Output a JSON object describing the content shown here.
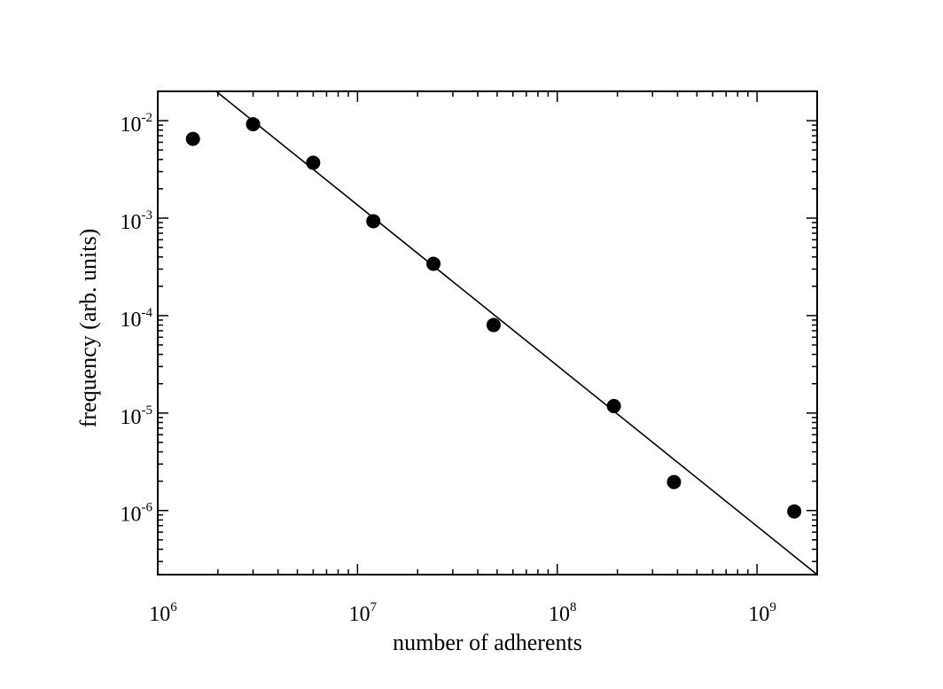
{
  "chart_data": {
    "type": "scatter",
    "title": "",
    "xlabel": "number of adherents",
    "ylabel": "frequency (arb. units)",
    "xscale": "log",
    "yscale": "log",
    "xlim": [
      1000000,
      2000000000
    ],
    "ylim": [
      2.2e-07,
      0.02
    ],
    "grid": false,
    "legend": "none",
    "x_ticks": [
      {
        "base": "10",
        "exp": "6",
        "value": 1000000
      },
      {
        "base": "10",
        "exp": "7",
        "value": 10000000
      },
      {
        "base": "10",
        "exp": "8",
        "value": 100000000
      },
      {
        "base": "10",
        "exp": "9",
        "value": 1000000000
      }
    ],
    "y_ticks": [
      {
        "base": "10",
        "exp": "-2",
        "value": 0.01
      },
      {
        "base": "10",
        "exp": "-3",
        "value": 0.001
      },
      {
        "base": "10",
        "exp": "-4",
        "value": 0.0001
      },
      {
        "base": "10",
        "exp": "-5",
        "value": 1e-05
      },
      {
        "base": "10",
        "exp": "-6",
        "value": 1e-06
      }
    ],
    "points": [
      {
        "x": 1500000,
        "y": 0.0065
      },
      {
        "x": 3000000,
        "y": 0.0092
      },
      {
        "x": 6000000,
        "y": 0.0037
      },
      {
        "x": 12000000,
        "y": 0.00093
      },
      {
        "x": 24000000,
        "y": 0.00034
      },
      {
        "x": 48000000,
        "y": 8e-05
      },
      {
        "x": 192000000,
        "y": 1.18e-05
      },
      {
        "x": 384000000,
        "y": 1.96e-06
      },
      {
        "x": 1536000000,
        "y": 9.8e-07
      }
    ],
    "fit_line": [
      {
        "x": 1960000,
        "y": 0.02
      },
      {
        "x": 2000000000,
        "y": 2.2e-07
      }
    ],
    "colors": {
      "points": "#000000",
      "line": "#000000",
      "frame": "#000000"
    }
  }
}
